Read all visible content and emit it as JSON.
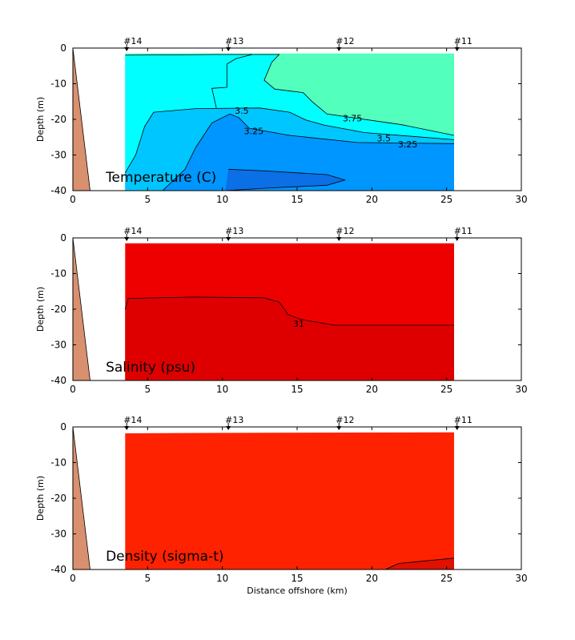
{
  "xlabel": "Distance offshore (km)",
  "ylabel": "Depth (m)",
  "colors": {
    "bottom": "#d9906e",
    "t_above_375": "#52ffbd",
    "t_35_375": "#00ffff",
    "t_325_35": "#00c6ff",
    "t_3_325": "#0096ff",
    "t_below_3": "#0b6fe6",
    "salinity_upper": "#ee0000",
    "salinity_lower": "#de0000",
    "density_main": "#ff2200",
    "density_deep": "#e01000"
  },
  "chart_data": [
    {
      "type": "contour",
      "title": "Temperature (C)",
      "xlabel": "",
      "ylabel": "Depth (m)",
      "xlim": [
        0,
        30
      ],
      "ylim": [
        -40,
        0
      ],
      "xticks": [
        "0",
        "5",
        "10",
        "15",
        "20",
        "25",
        "30"
      ],
      "yticks": [
        "0",
        "-10",
        "-20",
        "-30",
        "-40"
      ],
      "stations": [
        {
          "label": "#14",
          "x": 3.6
        },
        {
          "label": "#13",
          "x": 10.4
        },
        {
          "label": "#12",
          "x": 17.8
        },
        {
          "label": "#11",
          "x": 25.7
        }
      ],
      "contour_labels": [
        {
          "text": "3.75",
          "x": 18.7,
          "y": -19.7
        },
        {
          "text": "3.5",
          "x": 11.3,
          "y": -17.5
        },
        {
          "text": "3.25",
          "x": 12.1,
          "y": -23.3
        },
        {
          "text": "3.5",
          "x": 20.8,
          "y": -25.3
        },
        {
          "text": "3.25",
          "x": 22.4,
          "y": -27.0
        }
      ]
    },
    {
      "type": "contour",
      "title": "Salinity (psu)",
      "xlabel": "",
      "ylabel": "Depth (m)",
      "xlim": [
        0,
        30
      ],
      "ylim": [
        -40,
        0
      ],
      "xticks": [
        "0",
        "5",
        "10",
        "15",
        "20",
        "25",
        "30"
      ],
      "yticks": [
        "0",
        "-10",
        "-20",
        "-30",
        "-40"
      ],
      "stations": [
        {
          "label": "#14",
          "x": 3.6
        },
        {
          "label": "#13",
          "x": 10.4
        },
        {
          "label": "#12",
          "x": 17.8
        },
        {
          "label": "#11",
          "x": 25.7
        }
      ],
      "contour_labels": [
        {
          "text": "31",
          "x": 15.1,
          "y": -24.1
        }
      ]
    },
    {
      "type": "contour",
      "title": "Density (sigma-t)",
      "xlabel": "Distance offshore (km)",
      "ylabel": "Depth (m)",
      "xlim": [
        0,
        30
      ],
      "ylim": [
        -40,
        0
      ],
      "xticks": [
        "0",
        "5",
        "10",
        "15",
        "20",
        "25",
        "30"
      ],
      "yticks": [
        "0",
        "-10",
        "-20",
        "-30",
        "-40"
      ],
      "stations": [
        {
          "label": "#14",
          "x": 3.6
        },
        {
          "label": "#13",
          "x": 10.4
        },
        {
          "label": "#12",
          "x": 17.8
        },
        {
          "label": "#11",
          "x": 25.7
        }
      ],
      "contour_labels": []
    }
  ]
}
